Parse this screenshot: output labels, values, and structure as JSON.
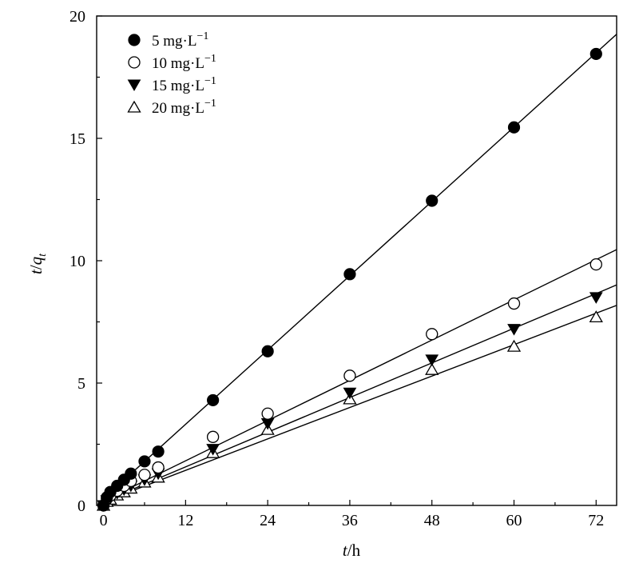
{
  "chart_data": {
    "type": "scatter",
    "xlabel_italic": "t",
    "xlabel_rest": "/h",
    "ylabel_italic": "t",
    "ylabel_mid": "/",
    "ylabel_q": "q",
    "ylabel_sub": "t",
    "xlim": [
      -1,
      75
    ],
    "ylim": [
      0,
      20
    ],
    "x_ticks": [
      0,
      12,
      24,
      36,
      48,
      60,
      72
    ],
    "x_tick_labels": [
      "0",
      "12",
      "24",
      "36",
      "48",
      "60",
      "72"
    ],
    "y_ticks": [
      0,
      5,
      10,
      15,
      20
    ],
    "y_tick_labels": [
      "0",
      "5",
      "10",
      "15",
      "20"
    ],
    "legend_position": "top-left",
    "grid": false,
    "x": [
      0,
      0.5,
      1,
      2,
      3,
      4,
      6,
      8,
      16,
      24,
      36,
      48,
      60,
      72
    ],
    "series": [
      {
        "name": "5 mg·L",
        "name_sup": "−1",
        "marker": "filled-circle",
        "values": [
          0,
          0.33,
          0.55,
          0.8,
          1.05,
          1.3,
          1.8,
          2.2,
          4.3,
          6.3,
          9.45,
          12.45,
          15.45,
          18.45
        ],
        "fit": {
          "slope": 0.253,
          "intercept": 0.28
        }
      },
      {
        "name": "10 mg·L",
        "name_sup": "−1",
        "marker": "open-circle",
        "values": [
          0,
          0.28,
          0.4,
          0.6,
          0.8,
          1.0,
          1.25,
          1.55,
          2.8,
          3.75,
          5.3,
          7.0,
          8.25,
          9.85
        ],
        "fit": {
          "slope": 0.137,
          "intercept": 0.18
        }
      },
      {
        "name": "15 mg·L",
        "name_sup": "−1",
        "marker": "filled-triangle-down",
        "values": [
          0,
          0.2,
          0.3,
          0.5,
          0.65,
          0.8,
          1.05,
          1.3,
          2.3,
          3.35,
          4.6,
          5.95,
          7.2,
          8.5
        ],
        "fit": {
          "slope": 0.118,
          "intercept": 0.16
        }
      },
      {
        "name": "20 mg·L",
        "name_sup": "−1",
        "marker": "open-triangle-up",
        "values": [
          0,
          0.16,
          0.25,
          0.42,
          0.55,
          0.7,
          0.95,
          1.15,
          2.15,
          3.1,
          4.35,
          5.55,
          6.5,
          7.7
        ],
        "fit": {
          "slope": 0.107,
          "intercept": 0.15
        }
      }
    ]
  }
}
